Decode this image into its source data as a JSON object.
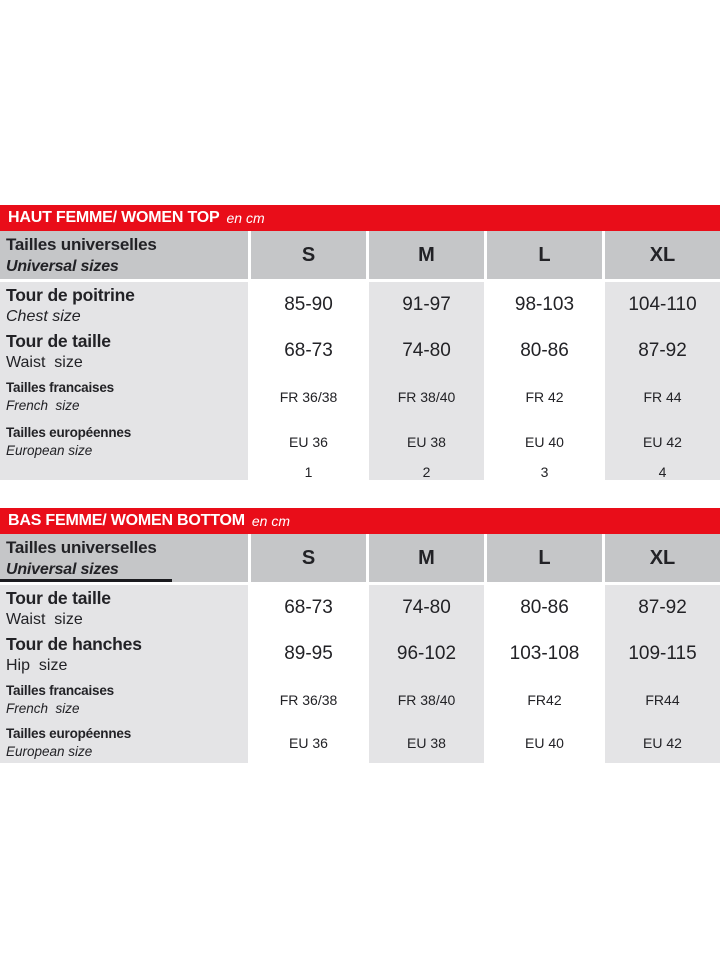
{
  "colors": {
    "accent_red": "#e90d19",
    "header_gray": "#c5c6c8",
    "cell_gray": "#e4e4e6",
    "cell_white": "#ffffff",
    "text": "#222226",
    "title_text": "#ffffff"
  },
  "tables": [
    {
      "title": "HAUT FEMME/ WOMEN TOP",
      "unit": "en cm",
      "header": {
        "label_fr": "Tailles universelles",
        "label_en": "Universal sizes",
        "underline_en": false,
        "columns": [
          "S",
          "M",
          "L",
          "XL"
        ]
      },
      "rows": [
        {
          "fr": "Tour de poitrine",
          "en": "Chest size",
          "en_italic": true,
          "style": "large",
          "values": [
            "85-90",
            "91-97",
            "98-103",
            "104-110"
          ]
        },
        {
          "fr": "Tour de taille",
          "en": "Waist  size",
          "en_italic": false,
          "style": "large",
          "values": [
            "68-73",
            "74-80",
            "80-86",
            "87-92"
          ]
        },
        {
          "fr": "Tailles francaises",
          "en": "French  size",
          "en_italic": true,
          "style": "small",
          "values": [
            "FR 36/38",
            "FR 38/40",
            "FR 42",
            "FR 44"
          ]
        },
        {
          "fr": "Tailles européennes",
          "en": "European size",
          "en_italic": true,
          "style": "small",
          "values": [
            "EU 36",
            "EU 38",
            "EU 40",
            "EU 42"
          ]
        },
        {
          "fr": "",
          "en": "",
          "en_italic": false,
          "style": "numeric",
          "values": [
            "1",
            "2",
            "3",
            "4"
          ]
        }
      ]
    },
    {
      "title": "BAS FEMME/ WOMEN BOTTOM",
      "unit": "en cm",
      "header": {
        "label_fr": "Tailles universelles",
        "label_en": "Universal sizes",
        "underline_en": true,
        "columns": [
          "S",
          "M",
          "L",
          "XL"
        ]
      },
      "rows": [
        {
          "fr": "Tour de taille",
          "en": "Waist  size",
          "en_italic": false,
          "style": "large",
          "values": [
            "68-73",
            "74-80",
            "80-86",
            "87-92"
          ]
        },
        {
          "fr": "Tour de hanches",
          "en": "Hip  size",
          "en_italic": false,
          "style": "large",
          "values": [
            "89-95",
            "96-102",
            "103-108",
            "109-115"
          ]
        },
        {
          "fr": "Tailles francaises",
          "en": "French  size",
          "en_italic": true,
          "style": "small",
          "values": [
            "FR 36/38",
            "FR 38/40",
            "FR42",
            "FR44"
          ]
        },
        {
          "fr": "Tailles européennes",
          "en": "European size",
          "en_italic": true,
          "style": "small",
          "values": [
            "EU 36",
            "EU 38",
            "EU 40",
            "EU 42"
          ]
        }
      ]
    }
  ]
}
